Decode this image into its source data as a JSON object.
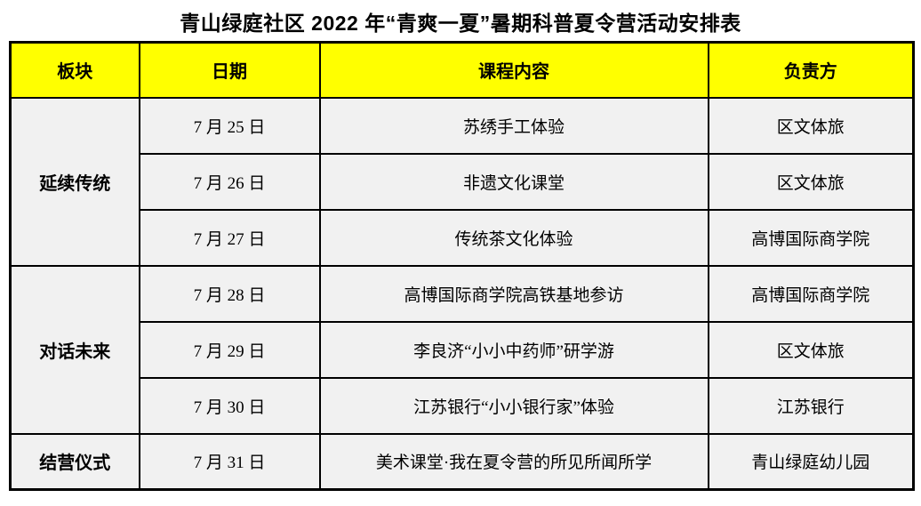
{
  "title": "青山绿庭社区 2022 年“青爽一夏”暑期科普夏令营活动安排表",
  "colors": {
    "header_bg": "#ffff00",
    "body_bg": "#f1f1f1",
    "border": "#000000",
    "page_bg": "#ffffff",
    "text": "#000000"
  },
  "table": {
    "columns": [
      "板块",
      "日期",
      "课程内容",
      "负责方"
    ],
    "sections": [
      {
        "label": "延续传统",
        "rowspan": 3
      },
      {
        "label": "对话未来",
        "rowspan": 3
      },
      {
        "label": "结营仪式",
        "rowspan": 1
      }
    ],
    "rows": [
      {
        "date": "7 月 25 日",
        "content": "苏绣手工体验",
        "owner": "区文体旅"
      },
      {
        "date": "7 月 26 日",
        "content": "非遗文化课堂",
        "owner": "区文体旅"
      },
      {
        "date": "7 月 27 日",
        "content": "传统茶文化体验",
        "owner": "高博国际商学院"
      },
      {
        "date": "7 月 28 日",
        "content": "高博国际商学院高铁基地参访",
        "owner": "高博国际商学院"
      },
      {
        "date": "7 月 29 日",
        "content": "李良济“小小中药师”研学游",
        "owner": "区文体旅"
      },
      {
        "date": "7 月 30 日",
        "content": "江苏银行“小小银行家”体验",
        "owner": "江苏银行"
      },
      {
        "date": "7 月 31 日",
        "content": "美术课堂·我在夏令营的所见所闻所学",
        "owner": "青山绿庭幼儿园"
      }
    ]
  }
}
